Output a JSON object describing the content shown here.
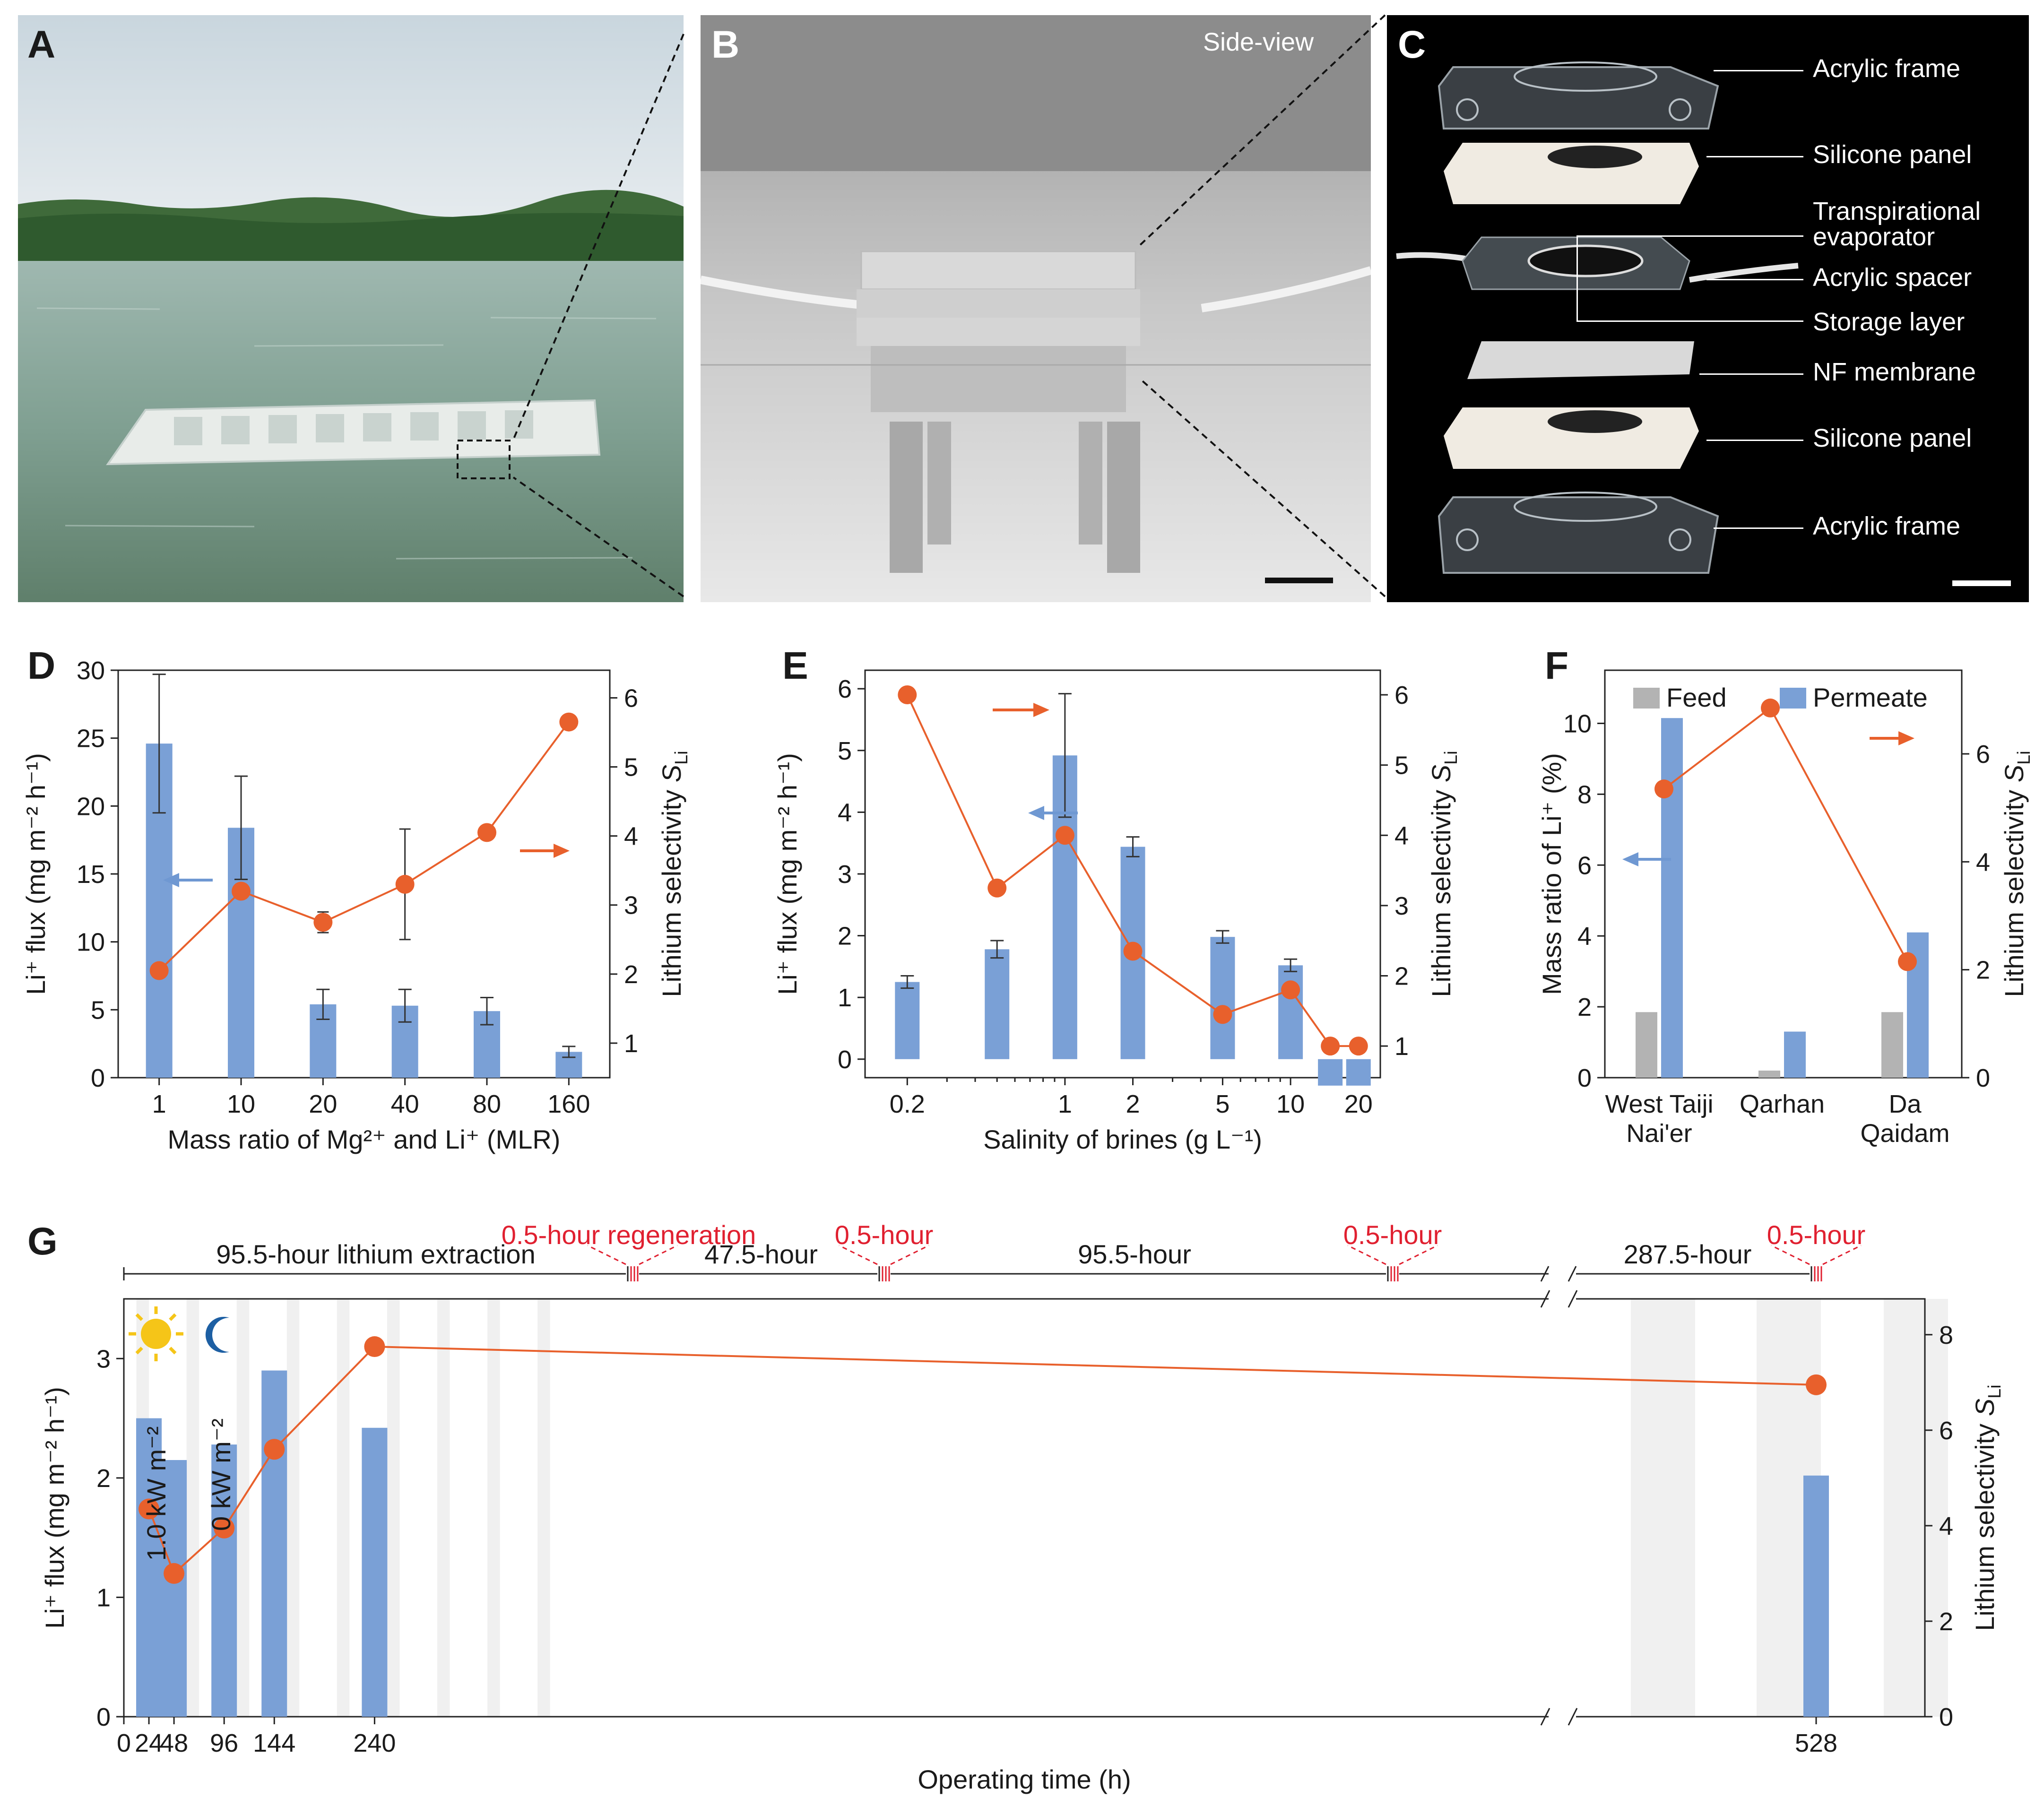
{
  "panels": {
    "A": {
      "label": "A"
    },
    "B": {
      "label": "B",
      "annotation": "Side-view"
    },
    "C": {
      "label": "C",
      "parts": [
        "Acrylic frame",
        "Silicone panel",
        "Transpirational",
        "evaporator",
        "Acrylic spacer",
        "Storage layer",
        "NF membrane",
        "Silicone panel",
        "Acrylic frame"
      ]
    },
    "D": {
      "label": "D"
    },
    "E": {
      "label": "E"
    },
    "F": {
      "label": "F"
    },
    "G": {
      "label": "G"
    }
  },
  "colors": {
    "bar": "#7aa0d6",
    "line": "#e8602c",
    "feed": "#b3b3b3",
    "arrow_blue": "#6f98d2",
    "arrow_orange": "#e8602c",
    "regen": "#e02030",
    "shade": "#f0f0f0"
  },
  "chart_data": [
    {
      "id": "D",
      "type": "bar+line",
      "categories": [
        "1",
        "10",
        "20",
        "40",
        "80",
        "160"
      ],
      "xlabel": "Mass ratio of Mg²⁺ and Li⁺ (MLR)",
      "ylabel": "Li⁺ flux (mg m⁻² h⁻¹)",
      "y2label": "Lithium selectivity S_Li",
      "ylim": [
        0,
        30
      ],
      "yticks": [
        0,
        5,
        10,
        15,
        20,
        25,
        30
      ],
      "y2lim": [
        0.5,
        6.4
      ],
      "y2ticks": [
        1,
        2,
        3,
        4,
        5,
        6
      ],
      "series": [
        {
          "name": "Li⁺ flux",
          "axis": "left",
          "kind": "bar",
          "values": [
            24.6,
            18.4,
            5.4,
            5.3,
            4.9,
            1.9
          ],
          "errors": [
            5.1,
            3.8,
            1.1,
            1.2,
            1.0,
            0.4
          ]
        },
        {
          "name": "Lithium selectivity",
          "axis": "right",
          "kind": "line",
          "values": [
            2.05,
            3.2,
            2.75,
            3.3,
            4.05,
            5.65
          ],
          "errors": [
            0.05,
            0.1,
            0.15,
            0.8,
            0.05,
            0.05
          ]
        }
      ]
    },
    {
      "id": "E",
      "type": "bar+line",
      "xscale": "log",
      "x": [
        0.2,
        0.5,
        1,
        2,
        5,
        10,
        15,
        20
      ],
      "xticks": [
        0.2,
        1,
        2,
        5,
        10,
        20
      ],
      "xticklabels": [
        "0.2",
        "1",
        "2",
        "5",
        "10",
        "20"
      ],
      "xlim": [
        0.13,
        25
      ],
      "xlabel": "Salinity of brines (g L⁻¹)",
      "ylabel": "Li⁺ flux (mg m⁻² h⁻¹)",
      "y2label": "Lithium selectivity S_Li",
      "ylim": [
        -0.3,
        6.3
      ],
      "yticks": [
        0,
        1,
        2,
        3,
        4,
        5,
        6
      ],
      "y2lim": [
        0.55,
        6.35
      ],
      "y2ticks": [
        1,
        2,
        3,
        4,
        5,
        6
      ],
      "series": [
        {
          "name": "Li⁺ flux",
          "axis": "left",
          "kind": "bar",
          "values": [
            1.25,
            1.78,
            4.92,
            3.44,
            1.98,
            1.52,
            0.0,
            0.0
          ],
          "errors": [
            0.1,
            0.14,
            1.0,
            0.16,
            0.1,
            0.1,
            0,
            0
          ]
        },
        {
          "name": "Lithium selectivity",
          "axis": "right",
          "kind": "line",
          "values": [
            6.0,
            3.25,
            4.0,
            2.35,
            1.45,
            1.8,
            1.0,
            1.0
          ],
          "errors": [
            0.05,
            0.05,
            0.05,
            0.05,
            0.05,
            0.05,
            0,
            0
          ]
        }
      ]
    },
    {
      "id": "F",
      "type": "bar+line",
      "categories": [
        "West Taiji\nNai'er",
        "Qarhan",
        "Da\nQaidam"
      ],
      "ylabel": "Mass ratio of Li⁺ (%)",
      "y2label": "Lithium selectivity S_Li",
      "ylim": [
        0,
        11.5
      ],
      "yticks": [
        0,
        2,
        4,
        6,
        8,
        10
      ],
      "y2lim": [
        0,
        7.55
      ],
      "y2ticks": [
        0,
        2,
        4,
        6
      ],
      "legend": [
        "Feed",
        "Permeate"
      ],
      "series": [
        {
          "name": "Feed",
          "axis": "left",
          "kind": "bar",
          "values": [
            1.85,
            0.2,
            1.85
          ]
        },
        {
          "name": "Permeate",
          "axis": "left",
          "kind": "bar",
          "values": [
            10.15,
            1.3,
            4.1
          ]
        },
        {
          "name": "Lithium selectivity",
          "axis": "right",
          "kind": "line",
          "values": [
            5.35,
            6.85,
            2.15
          ]
        }
      ]
    },
    {
      "id": "G",
      "type": "bar+line",
      "x": [
        24,
        48,
        96,
        144,
        240,
        528
      ],
      "xticks": [
        "0",
        "24",
        "48",
        "96",
        "144",
        "240",
        "528"
      ],
      "xlabel": "Operating time (h)",
      "ylabel": "Li⁺ flux (mg m⁻² h⁻¹)",
      "y2label": "Lithium selectivity S_Li",
      "ylim": [
        0,
        3.5
      ],
      "yticks": [
        0,
        1,
        2,
        3
      ],
      "y2lim": [
        0,
        8.75
      ],
      "y2ticks": [
        0,
        2,
        4,
        6,
        8
      ],
      "series": [
        {
          "name": "Li⁺ flux",
          "axis": "left",
          "kind": "bar",
          "values": [
            2.5,
            2.15,
            2.28,
            2.9,
            2.42,
            2.02
          ]
        },
        {
          "name": "Lithium selectivity",
          "axis": "right",
          "kind": "line",
          "values": [
            4.35,
            3.0,
            3.95,
            5.6,
            7.75,
            6.95
          ]
        }
      ],
      "light_labels": [
        "1.0 kW m⁻²",
        "0 kW m⁻²"
      ],
      "timeline": {
        "segments": [
          "95.5-hour lithium extraction",
          "47.5-hour",
          "95.5-hour",
          "287.5-hour"
        ],
        "regeneration": [
          "0.5-hour regeneration",
          "0.5-hour",
          "0.5-hour",
          "0.5-hour"
        ]
      }
    }
  ]
}
